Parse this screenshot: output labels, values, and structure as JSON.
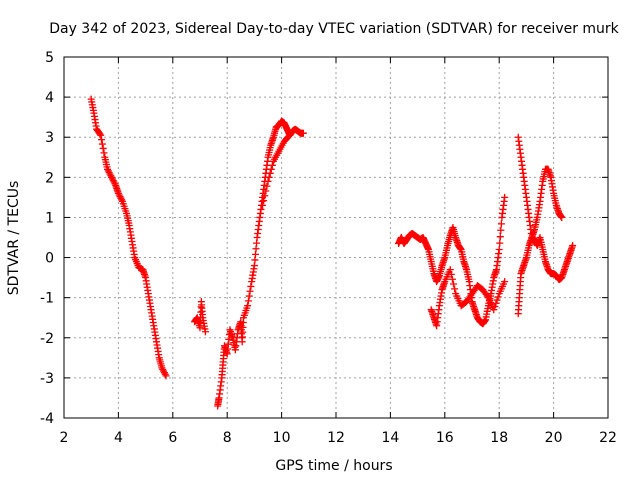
{
  "chart_data": {
    "type": "scatter",
    "title": "Day 342 of 2023, Sidereal Day-to-day VTEC variation (SDTVAR) for receiver murk",
    "xlabel": "GPS time / hours",
    "ylabel": "SDTVAR / TECUs",
    "xlim": [
      2,
      22
    ],
    "ylim": [
      -4,
      5
    ],
    "xticks": [
      2,
      4,
      6,
      8,
      10,
      12,
      14,
      16,
      18,
      20,
      22
    ],
    "yticks": [
      -4,
      -3,
      -2,
      -1,
      0,
      1,
      2,
      3,
      4,
      5
    ],
    "grid": true,
    "marker": "+",
    "series_color": "#ff0000",
    "series": [
      {
        "name": "SDTVAR",
        "segments": [
          [
            [
              3.0,
              3.95
            ],
            [
              3.1,
              3.6
            ],
            [
              3.2,
              3.2
            ],
            [
              3.35,
              3.05
            ],
            [
              3.5,
              2.5
            ],
            [
              3.6,
              2.2
            ],
            [
              3.75,
              2.0
            ],
            [
              3.9,
              1.8
            ],
            [
              4.0,
              1.6
            ],
            [
              4.15,
              1.4
            ],
            [
              4.3,
              1.1
            ],
            [
              4.4,
              0.8
            ],
            [
              4.5,
              0.4
            ],
            [
              4.6,
              0.0
            ],
            [
              4.75,
              -0.25
            ],
            [
              4.9,
              -0.3
            ],
            [
              5.0,
              -0.5
            ],
            [
              5.1,
              -0.9
            ],
            [
              5.2,
              -1.3
            ],
            [
              5.3,
              -1.7
            ],
            [
              5.4,
              -2.1
            ],
            [
              5.5,
              -2.5
            ],
            [
              5.6,
              -2.75
            ],
            [
              5.75,
              -2.95
            ]
          ],
          [
            [
              6.8,
              -1.6
            ],
            [
              6.9,
              -1.5
            ],
            [
              7.0,
              -1.75
            ],
            [
              7.05,
              -1.1
            ],
            [
              7.1,
              -1.5
            ],
            [
              7.2,
              -1.85
            ]
          ],
          [
            [
              7.65,
              -3.7
            ],
            [
              7.7,
              -3.5
            ],
            [
              7.8,
              -3.0
            ],
            [
              7.85,
              -2.6
            ],
            [
              7.9,
              -2.2
            ],
            [
              8.0,
              -2.4
            ],
            [
              8.1,
              -1.8
            ],
            [
              8.2,
              -2.0
            ],
            [
              8.3,
              -2.3
            ],
            [
              8.4,
              -1.8
            ],
            [
              8.5,
              -1.6
            ],
            [
              8.55,
              -2.1
            ],
            [
              8.6,
              -1.5
            ],
            [
              8.75,
              -1.2
            ],
            [
              8.9,
              -0.6
            ],
            [
              9.0,
              -0.2
            ],
            [
              9.1,
              0.5
            ],
            [
              9.2,
              1.0
            ],
            [
              9.3,
              1.5
            ],
            [
              9.4,
              2.0
            ],
            [
              9.5,
              2.5
            ],
            [
              9.6,
              2.8
            ],
            [
              9.7,
              3.0
            ],
            [
              9.8,
              3.25
            ],
            [
              9.9,
              3.3
            ],
            [
              10.0,
              3.4
            ],
            [
              10.1,
              3.35
            ],
            [
              10.2,
              3.2
            ],
            [
              10.3,
              3.05
            ],
            [
              10.4,
              3.15
            ],
            [
              10.5,
              3.2
            ],
            [
              10.6,
              3.15
            ],
            [
              10.7,
              3.1
            ],
            [
              10.8,
              3.1
            ]
          ],
          [
            [
              9.3,
              1.3
            ],
            [
              9.5,
              1.9
            ],
            [
              9.7,
              2.4
            ],
            [
              9.9,
              2.65
            ],
            [
              10.1,
              2.9
            ],
            [
              10.3,
              3.05
            ]
          ],
          [
            [
              14.3,
              0.35
            ],
            [
              14.4,
              0.5
            ],
            [
              14.5,
              0.35
            ],
            [
              14.6,
              0.45
            ],
            [
              14.7,
              0.55
            ],
            [
              14.8,
              0.6
            ],
            [
              14.9,
              0.55
            ],
            [
              15.0,
              0.5
            ],
            [
              15.1,
              0.45
            ],
            [
              15.2,
              0.5
            ],
            [
              15.3,
              0.35
            ],
            [
              15.4,
              0.2
            ],
            [
              15.5,
              -0.1
            ],
            [
              15.6,
              -0.4
            ],
            [
              15.7,
              -0.6
            ],
            [
              15.8,
              -0.45
            ],
            [
              15.9,
              -0.2
            ],
            [
              16.0,
              0.0
            ],
            [
              16.1,
              0.3
            ],
            [
              16.2,
              0.55
            ],
            [
              16.3,
              0.75
            ],
            [
              16.4,
              0.5
            ],
            [
              16.5,
              0.3
            ],
            [
              16.6,
              0.2
            ],
            [
              16.7,
              -0.1
            ],
            [
              16.8,
              -0.3
            ],
            [
              16.9,
              -0.6
            ],
            [
              17.0,
              -1.1
            ],
            [
              17.1,
              -1.3
            ],
            [
              17.2,
              -1.5
            ],
            [
              17.3,
              -1.6
            ],
            [
              17.4,
              -1.65
            ],
            [
              17.5,
              -1.55
            ],
            [
              17.6,
              -1.2
            ],
            [
              17.7,
              -0.9
            ],
            [
              17.8,
              -0.5
            ],
            [
              17.9,
              -0.3
            ],
            [
              18.0,
              0.2
            ],
            [
              18.1,
              1.0
            ],
            [
              18.2,
              1.5
            ]
          ],
          [
            [
              15.5,
              -1.3
            ],
            [
              15.6,
              -1.5
            ],
            [
              15.7,
              -1.7
            ],
            [
              15.8,
              -1.2
            ],
            [
              15.9,
              -0.8
            ],
            [
              16.0,
              -0.6
            ],
            [
              16.2,
              -0.3
            ],
            [
              16.4,
              -0.9
            ],
            [
              16.6,
              -1.2
            ],
            [
              16.8,
              -1.1
            ],
            [
              17.0,
              -0.9
            ],
            [
              17.2,
              -0.7
            ],
            [
              17.4,
              -0.8
            ],
            [
              17.6,
              -1.0
            ],
            [
              17.8,
              -1.3
            ],
            [
              18.0,
              -0.9
            ],
            [
              18.2,
              -0.6
            ]
          ],
          [
            [
              18.7,
              3.0
            ],
            [
              18.8,
              2.5
            ],
            [
              18.9,
              2.0
            ],
            [
              19.0,
              1.5
            ],
            [
              19.1,
              1.0
            ],
            [
              19.2,
              0.5
            ],
            [
              19.3,
              0.7
            ],
            [
              19.4,
              1.0
            ],
            [
              19.5,
              1.4
            ],
            [
              19.6,
              1.9
            ],
            [
              19.7,
              2.2
            ],
            [
              19.8,
              2.2
            ],
            [
              19.9,
              2.0
            ],
            [
              20.0,
              1.6
            ],
            [
              20.1,
              1.3
            ],
            [
              20.2,
              1.1
            ],
            [
              20.3,
              1.0
            ]
          ],
          [
            [
              18.7,
              -1.4
            ],
            [
              18.75,
              -0.9
            ],
            [
              18.8,
              -0.4
            ],
            [
              18.9,
              -0.2
            ],
            [
              19.0,
              0.0
            ],
            [
              19.1,
              0.3
            ],
            [
              19.2,
              0.5
            ],
            [
              19.3,
              0.45
            ],
            [
              19.4,
              0.3
            ],
            [
              19.5,
              0.5
            ],
            [
              19.6,
              0.2
            ],
            [
              19.7,
              -0.1
            ],
            [
              19.8,
              -0.3
            ],
            [
              19.9,
              -0.4
            ],
            [
              20.0,
              -0.4
            ],
            [
              20.1,
              -0.45
            ],
            [
              20.2,
              -0.55
            ],
            [
              20.3,
              -0.5
            ],
            [
              20.4,
              -0.3
            ],
            [
              20.5,
              -0.1
            ],
            [
              20.6,
              0.1
            ],
            [
              20.7,
              0.3
            ]
          ]
        ]
      }
    ]
  }
}
